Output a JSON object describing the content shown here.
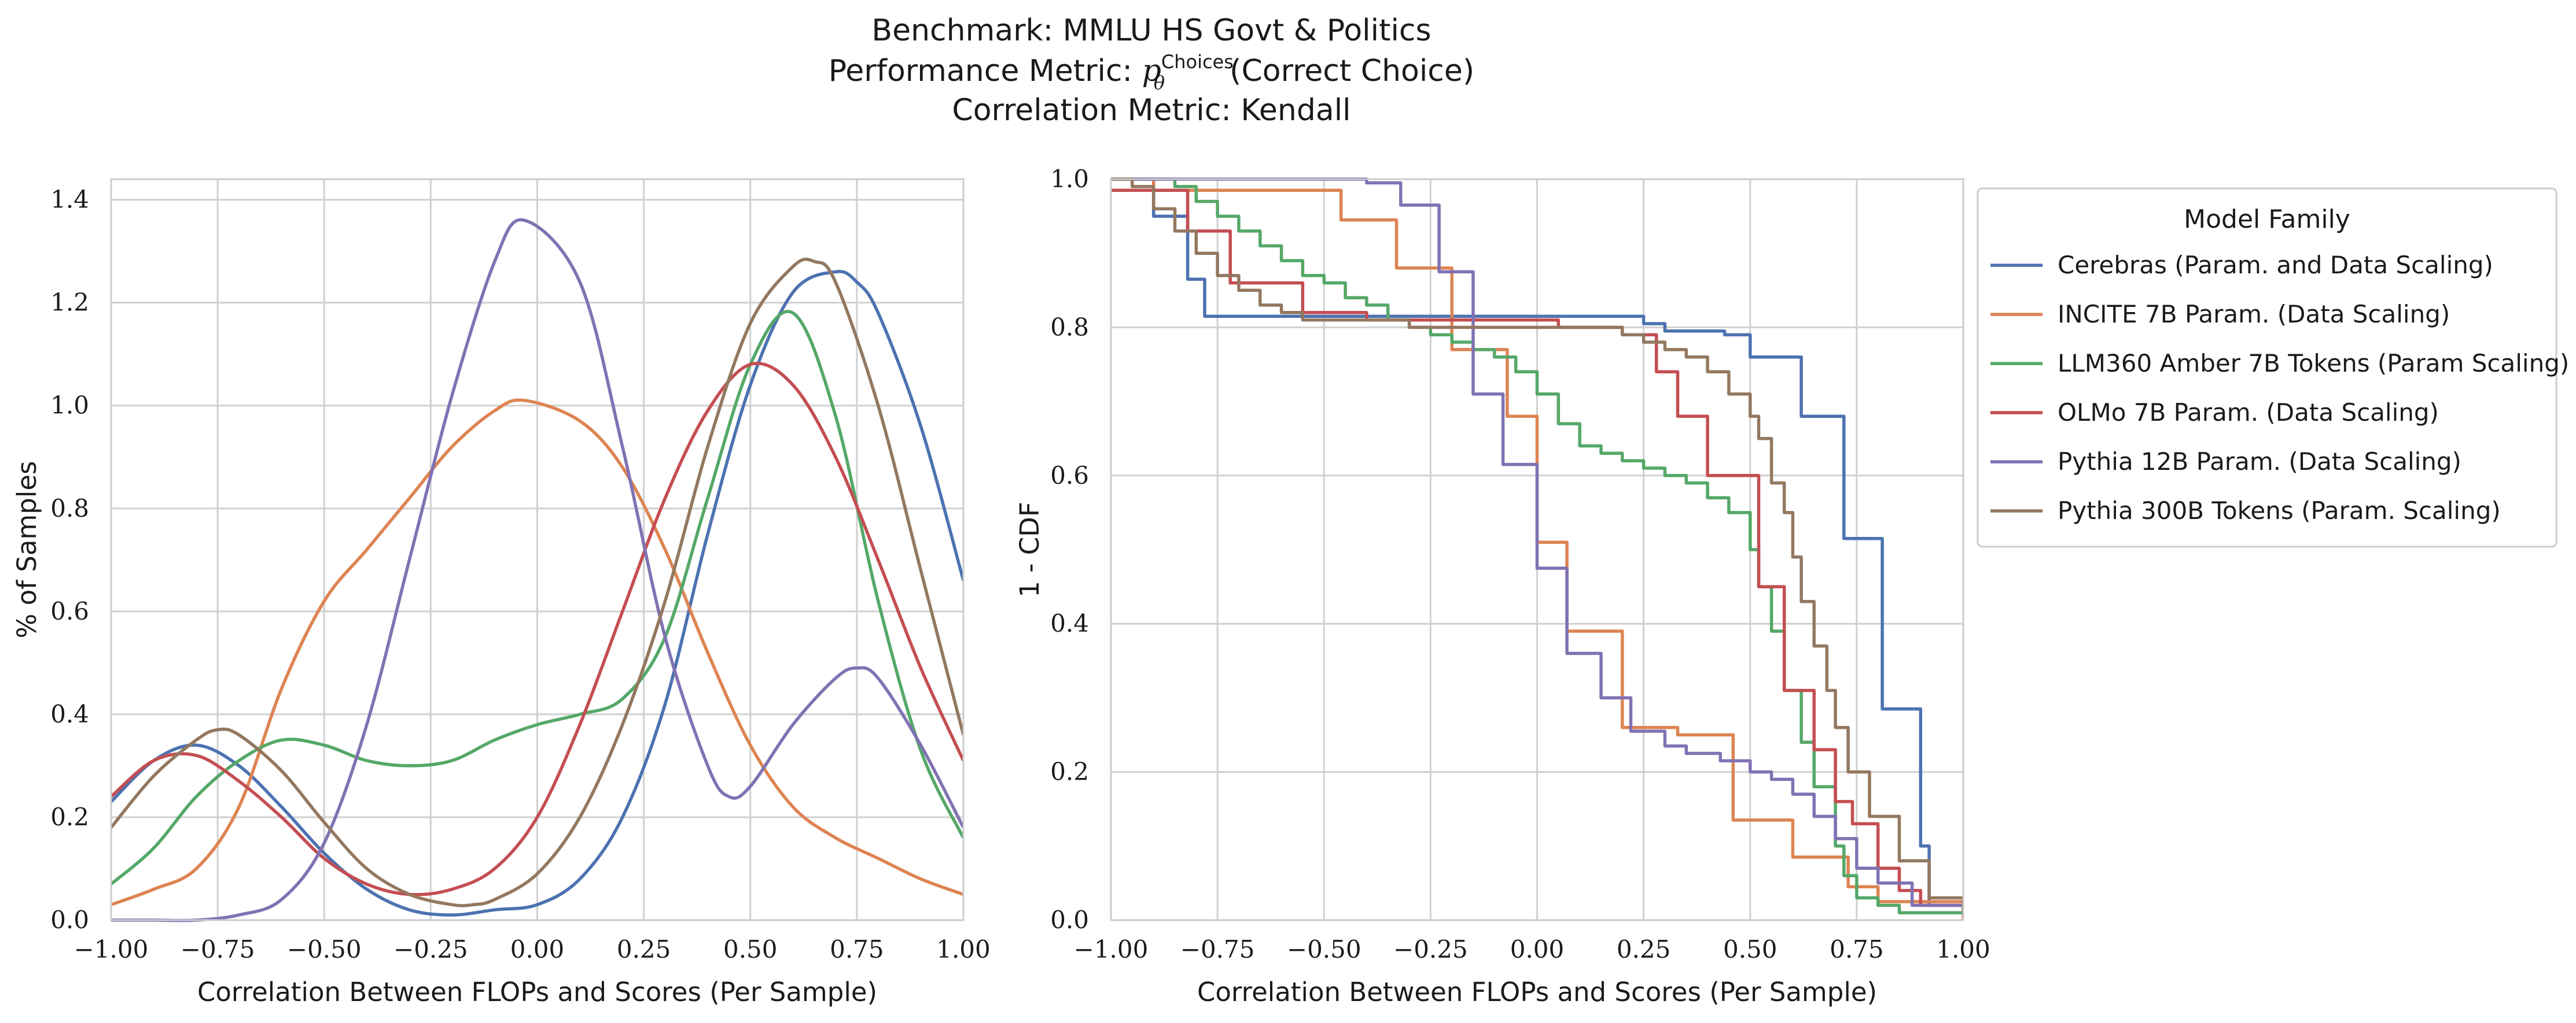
{
  "title": {
    "line1": "Benchmark: MMLU HS Govt & Politics",
    "line2_prefix": "Performance Metric: ",
    "line2_math_base": "p",
    "line2_math_sup": "Choices",
    "line2_math_sub": "θ",
    "line2_suffix": "(Correct Choice)",
    "line3": "Correlation Metric: Kendall"
  },
  "colors": {
    "Cerebras": "#4c72b0",
    "INCITE": "#dd8452",
    "LLM360": "#55a868",
    "OLMo": "#c44e52",
    "Pythia12B": "#8172b3",
    "Pythia300B": "#937860",
    "grid": "#d0d0d0",
    "frame": "#cccccc"
  },
  "legend": {
    "title": "Model Family",
    "placement": "outside right of right panel, top",
    "entries": [
      "Cerebras (Param. and Data Scaling)",
      "INCITE 7B Param. (Data Scaling)",
      "LLM360 Amber 7B Tokens (Param Scaling)",
      "OLMo 7B Param. (Data Scaling)",
      "Pythia 12B Param. (Data Scaling)",
      "Pythia 300B Tokens (Param. Scaling)"
    ]
  },
  "chart_data": [
    {
      "type": "line",
      "subtype": "kde",
      "xlabel": "Correlation Between FLOPs and Scores (Per Sample)",
      "ylabel": "% of Samples",
      "xlim": [
        -1.0,
        1.0
      ],
      "ylim": [
        0.0,
        1.44
      ],
      "xticks": [
        "−1.00",
        "−0.75",
        "−0.50",
        "−0.25",
        "0.00",
        "0.25",
        "0.50",
        "0.75",
        "1.00"
      ],
      "yticks": [
        "0.0",
        "0.2",
        "0.4",
        "0.6",
        "0.8",
        "1.0",
        "1.2",
        "1.4"
      ],
      "grid": true,
      "series": [
        {
          "name": "Cerebras (Param. and Data Scaling)",
          "key": "Cerebras",
          "x": [
            -1.0,
            -0.9,
            -0.8,
            -0.7,
            -0.6,
            -0.5,
            -0.4,
            -0.3,
            -0.2,
            -0.1,
            0.0,
            0.1,
            0.2,
            0.3,
            0.4,
            0.5,
            0.6,
            0.7,
            0.75,
            0.8,
            0.9,
            1.0
          ],
          "y": [
            0.23,
            0.31,
            0.34,
            0.3,
            0.22,
            0.13,
            0.06,
            0.02,
            0.01,
            0.02,
            0.03,
            0.08,
            0.2,
            0.42,
            0.75,
            1.04,
            1.22,
            1.26,
            1.24,
            1.18,
            0.96,
            0.66
          ]
        },
        {
          "name": "INCITE 7B Param. (Data Scaling)",
          "key": "INCITE",
          "x": [
            -1.0,
            -0.9,
            -0.8,
            -0.7,
            -0.6,
            -0.5,
            -0.4,
            -0.3,
            -0.2,
            -0.1,
            -0.03,
            0.1,
            0.2,
            0.3,
            0.4,
            0.5,
            0.6,
            0.7,
            0.8,
            0.9,
            1.0
          ],
          "y": [
            0.03,
            0.06,
            0.1,
            0.22,
            0.45,
            0.62,
            0.72,
            0.82,
            0.92,
            0.99,
            1.01,
            0.97,
            0.88,
            0.72,
            0.52,
            0.34,
            0.22,
            0.16,
            0.12,
            0.08,
            0.05
          ]
        },
        {
          "name": "LLM360 Amber 7B Tokens (Param Scaling)",
          "key": "LLM360",
          "x": [
            -1.0,
            -0.9,
            -0.8,
            -0.7,
            -0.6,
            -0.5,
            -0.4,
            -0.3,
            -0.2,
            -0.1,
            0.0,
            0.1,
            0.2,
            0.3,
            0.4,
            0.5,
            0.6,
            0.7,
            0.8,
            0.9,
            1.0
          ],
          "y": [
            0.07,
            0.14,
            0.24,
            0.31,
            0.35,
            0.34,
            0.31,
            0.3,
            0.31,
            0.35,
            0.38,
            0.4,
            0.43,
            0.55,
            0.82,
            1.08,
            1.18,
            0.98,
            0.62,
            0.33,
            0.16
          ]
        },
        {
          "name": "OLMo 7B Param. (Data Scaling)",
          "key": "OLMo",
          "x": [
            -1.0,
            -0.9,
            -0.8,
            -0.7,
            -0.6,
            -0.5,
            -0.4,
            -0.3,
            -0.2,
            -0.1,
            0.0,
            0.1,
            0.2,
            0.3,
            0.4,
            0.5,
            0.6,
            0.7,
            0.8,
            0.9,
            1.0
          ],
          "y": [
            0.24,
            0.31,
            0.32,
            0.27,
            0.2,
            0.12,
            0.07,
            0.05,
            0.06,
            0.1,
            0.2,
            0.38,
            0.6,
            0.82,
            0.99,
            1.08,
            1.04,
            0.9,
            0.7,
            0.49,
            0.31
          ]
        },
        {
          "name": "Pythia 12B Param. (Data Scaling)",
          "key": "Pythia12B",
          "x": [
            -1.0,
            -0.9,
            -0.8,
            -0.7,
            -0.6,
            -0.5,
            -0.4,
            -0.3,
            -0.2,
            -0.1,
            -0.03,
            0.1,
            0.2,
            0.3,
            0.4,
            0.45,
            0.5,
            0.6,
            0.7,
            0.75,
            0.8,
            0.9,
            1.0
          ],
          "y": [
            0.0,
            0.0,
            0.0,
            0.01,
            0.04,
            0.15,
            0.38,
            0.7,
            1.02,
            1.28,
            1.36,
            1.24,
            0.92,
            0.55,
            0.3,
            0.24,
            0.26,
            0.38,
            0.47,
            0.49,
            0.47,
            0.34,
            0.18
          ]
        },
        {
          "name": "Pythia 300B Tokens (Param. Scaling)",
          "key": "Pythia300B",
          "x": [
            -1.0,
            -0.9,
            -0.8,
            -0.75,
            -0.7,
            -0.6,
            -0.5,
            -0.4,
            -0.3,
            -0.2,
            -0.15,
            -0.1,
            0.0,
            0.1,
            0.2,
            0.3,
            0.4,
            0.5,
            0.6,
            0.65,
            0.7,
            0.8,
            0.9,
            1.0
          ],
          "y": [
            0.18,
            0.28,
            0.35,
            0.37,
            0.36,
            0.29,
            0.19,
            0.1,
            0.05,
            0.03,
            0.03,
            0.04,
            0.09,
            0.2,
            0.38,
            0.62,
            0.92,
            1.16,
            1.27,
            1.28,
            1.24,
            1.0,
            0.68,
            0.36
          ]
        }
      ]
    },
    {
      "type": "line",
      "subtype": "step (1 - empirical CDF)",
      "xlabel": "Correlation Between FLOPs and Scores (Per Sample)",
      "ylabel": "1 - CDF",
      "xlim": [
        -1.0,
        1.0
      ],
      "ylim": [
        0.0,
        1.0
      ],
      "xticks": [
        "−1.00",
        "−0.75",
        "−0.50",
        "−0.25",
        "0.00",
        "0.25",
        "0.50",
        "0.75",
        "1.00"
      ],
      "yticks": [
        "0.0",
        "0.2",
        "0.4",
        "0.6",
        "0.8",
        "1.0"
      ],
      "grid": true,
      "series": [
        {
          "name": "Cerebras (Param. and Data Scaling)",
          "key": "Cerebras",
          "x": [
            -1.0,
            -0.9,
            -0.82,
            -0.78,
            0.25,
            0.3,
            0.44,
            0.5,
            0.58,
            0.62,
            0.7,
            0.72,
            0.8,
            0.81,
            0.9,
            0.92,
            1.0
          ],
          "y": [
            1.0,
            0.95,
            0.865,
            0.815,
            0.805,
            0.795,
            0.79,
            0.76,
            0.76,
            0.68,
            0.68,
            0.515,
            0.515,
            0.285,
            0.1,
            0.02,
            0.01
          ]
        },
        {
          "name": "INCITE 7B Param. (Data Scaling)",
          "key": "INCITE",
          "x": [
            -1.0,
            -0.9,
            -0.6,
            -0.46,
            -0.33,
            -0.2,
            -0.07,
            0.0,
            0.07,
            0.2,
            0.33,
            0.46,
            0.6,
            0.73,
            0.8,
            1.0
          ],
          "y": [
            1.0,
            0.985,
            0.985,
            0.945,
            0.88,
            0.77,
            0.68,
            0.51,
            0.39,
            0.26,
            0.25,
            0.135,
            0.085,
            0.045,
            0.025,
            0.0
          ]
        },
        {
          "name": "LLM360 Amber 7B Tokens (Param Scaling)",
          "key": "LLM360",
          "x": [
            -1.0,
            -0.92,
            -0.85,
            -0.8,
            -0.75,
            -0.7,
            -0.65,
            -0.6,
            -0.55,
            -0.5,
            -0.45,
            -0.4,
            -0.35,
            -0.3,
            -0.25,
            -0.2,
            -0.15,
            -0.1,
            -0.05,
            0.0,
            0.05,
            0.1,
            0.15,
            0.2,
            0.25,
            0.3,
            0.35,
            0.4,
            0.45,
            0.5,
            0.52,
            0.55,
            0.58,
            0.62,
            0.65,
            0.7,
            0.72,
            0.75,
            0.8,
            0.85,
            0.9,
            1.0
          ],
          "y": [
            1.0,
            1.0,
            0.99,
            0.97,
            0.95,
            0.93,
            0.91,
            0.89,
            0.87,
            0.86,
            0.84,
            0.83,
            0.81,
            0.8,
            0.79,
            0.78,
            0.77,
            0.76,
            0.74,
            0.71,
            0.67,
            0.64,
            0.63,
            0.62,
            0.61,
            0.6,
            0.59,
            0.57,
            0.55,
            0.5,
            0.45,
            0.39,
            0.31,
            0.24,
            0.18,
            0.1,
            0.06,
            0.03,
            0.02,
            0.01,
            0.01,
            0.01
          ]
        },
        {
          "name": "OLMo 7B Param. (Data Scaling)",
          "key": "OLMo",
          "x": [
            -1.0,
            -0.92,
            -0.82,
            -0.72,
            -0.55,
            -0.4,
            0.05,
            0.2,
            0.28,
            0.33,
            0.4,
            0.45,
            0.52,
            0.58,
            0.65,
            0.7,
            0.74,
            0.8,
            0.85,
            0.9,
            1.0
          ],
          "y": [
            0.985,
            0.985,
            0.93,
            0.86,
            0.82,
            0.81,
            0.8,
            0.79,
            0.74,
            0.68,
            0.6,
            0.6,
            0.45,
            0.31,
            0.23,
            0.16,
            0.13,
            0.07,
            0.04,
            0.02,
            0.02
          ]
        },
        {
          "name": "Pythia 12B Param. (Data Scaling)",
          "key": "Pythia12B",
          "x": [
            -1.0,
            -0.4,
            -0.32,
            -0.23,
            -0.15,
            -0.08,
            0.0,
            0.07,
            0.15,
            0.22,
            0.3,
            0.35,
            0.43,
            0.5,
            0.55,
            0.6,
            0.65,
            0.7,
            0.75,
            0.8,
            0.88,
            1.0
          ],
          "y": [
            1.0,
            0.995,
            0.965,
            0.875,
            0.71,
            0.615,
            0.475,
            0.36,
            0.3,
            0.255,
            0.235,
            0.225,
            0.215,
            0.2,
            0.19,
            0.17,
            0.14,
            0.11,
            0.07,
            0.05,
            0.02,
            0.02
          ]
        },
        {
          "name": "Pythia 300B Tokens (Param. Scaling)",
          "key": "Pythia300B",
          "x": [
            -1.0,
            -0.95,
            -0.9,
            -0.85,
            -0.8,
            -0.75,
            -0.7,
            -0.65,
            -0.6,
            -0.55,
            -0.3,
            0.15,
            0.2,
            0.25,
            0.3,
            0.35,
            0.4,
            0.45,
            0.5,
            0.52,
            0.55,
            0.58,
            0.6,
            0.62,
            0.65,
            0.68,
            0.7,
            0.73,
            0.78,
            0.85,
            0.92,
            1.0
          ],
          "y": [
            1.0,
            0.99,
            0.96,
            0.93,
            0.9,
            0.87,
            0.85,
            0.83,
            0.82,
            0.81,
            0.8,
            0.8,
            0.79,
            0.78,
            0.77,
            0.76,
            0.74,
            0.71,
            0.68,
            0.65,
            0.59,
            0.55,
            0.49,
            0.43,
            0.37,
            0.31,
            0.26,
            0.2,
            0.14,
            0.08,
            0.03,
            0.01
          ]
        }
      ]
    }
  ]
}
